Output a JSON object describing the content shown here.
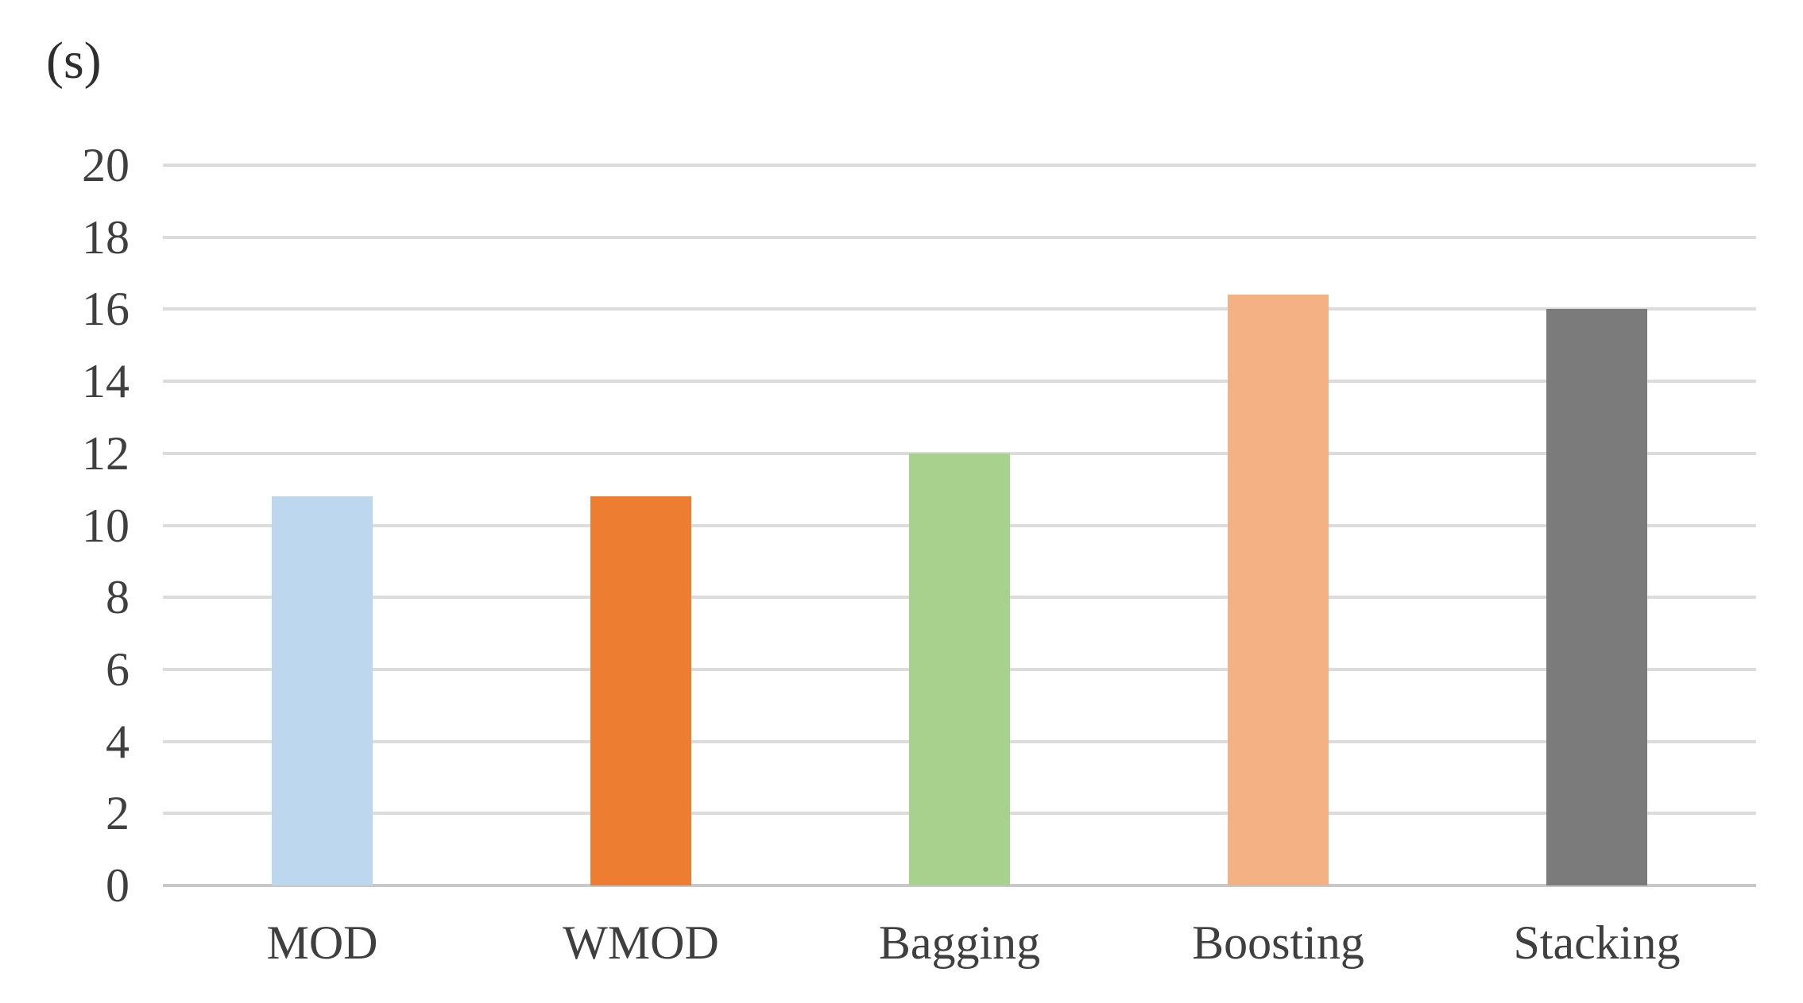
{
  "chart_data": {
    "type": "bar",
    "title": "",
    "ylabel": "(s)",
    "xlabel": "",
    "categories": [
      "MOD",
      "WMOD",
      "Bagging",
      "Boosting",
      "Stacking"
    ],
    "values": [
      10.8,
      10.8,
      12,
      16.4,
      16
    ],
    "bar_colors": [
      "#BDD7EE",
      "#ED7D31",
      "#A9D18E",
      "#F4B183",
      "#7B7B7B"
    ],
    "ylim": [
      0,
      20
    ],
    "yticks": [
      0,
      2,
      4,
      6,
      8,
      10,
      12,
      14,
      16,
      18,
      20
    ],
    "grid": true,
    "legend": false,
    "gridline_color": "#DCDCDC",
    "axis_line_color": "#C8C8C8",
    "text_color": "#3F3F3F"
  }
}
